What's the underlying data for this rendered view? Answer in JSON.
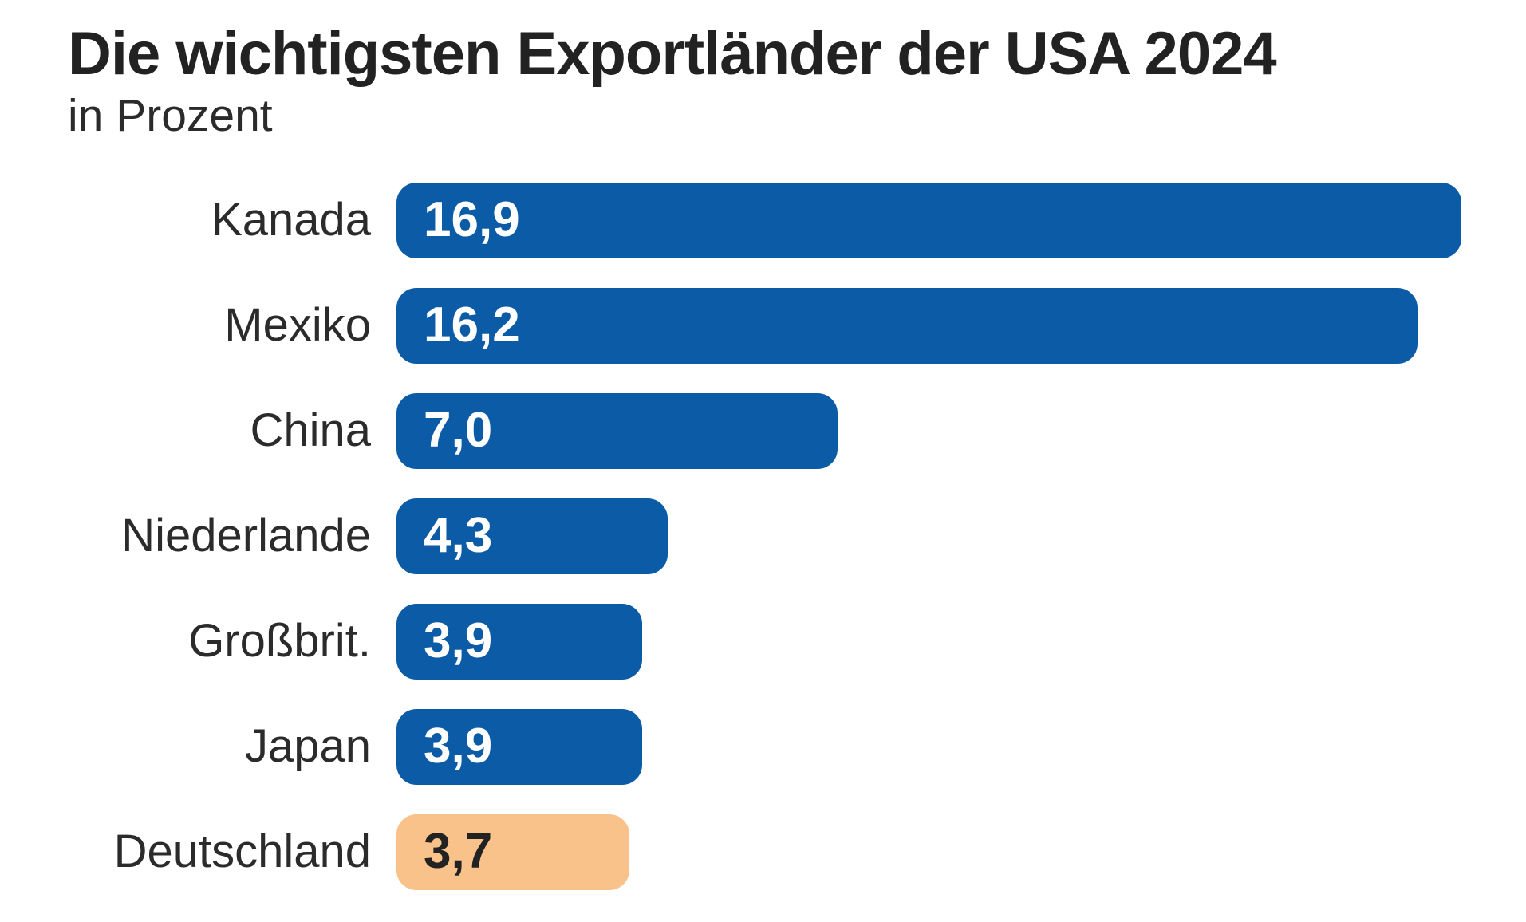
{
  "header": {
    "title": "Die wichtigsten Exportländer der USA 2024",
    "subtitle": "in Prozent"
  },
  "chart_data": {
    "type": "bar",
    "orientation": "horizontal",
    "title": "Die wichtigsten Exportländer der USA 2024",
    "subtitle": "in Prozent",
    "unit": "Prozent",
    "categories": [
      "Kanada",
      "Mexiko",
      "China",
      "Niederlande",
      "Großbrit.",
      "Japan",
      "Deutschland"
    ],
    "values": [
      16.9,
      16.2,
      7.0,
      4.3,
      3.9,
      3.9,
      3.7
    ],
    "value_labels": [
      "16,9",
      "16,2",
      "7,0",
      "4,3",
      "3,9",
      "3,9",
      "3,7"
    ],
    "xlim": [
      0,
      16.9
    ],
    "grid": false,
    "legend": false,
    "highlight_index": 6,
    "colors": {
      "bar": "#0b5ba6",
      "highlight_bar": "#f8c28a",
      "value_text": "#ffffff",
      "highlight_value_text": "#222222",
      "label_text": "#2b2b2b",
      "background": "#ffffff"
    }
  }
}
